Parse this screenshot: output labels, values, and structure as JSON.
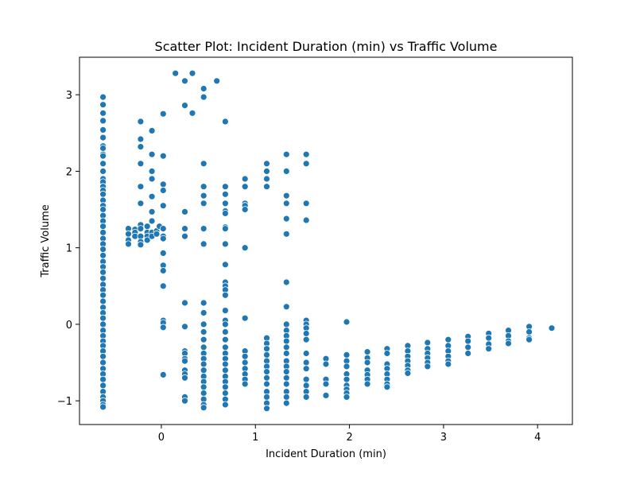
{
  "chart_data": {
    "type": "scatter",
    "title": "Scatter Plot: Incident Duration (min) vs Traffic Volume",
    "xlabel": "Incident Duration (min)",
    "ylabel": "Traffic Volume",
    "xlim": [
      -0.87,
      4.37
    ],
    "ylim": [
      -1.31,
      3.49
    ],
    "xticks": [
      0,
      1,
      2,
      3,
      4
    ],
    "yticks": [
      -1,
      0,
      1,
      2,
      3
    ],
    "grid": false,
    "legend": "none",
    "marker_color": "#1f77b4",
    "columns": [
      {
        "x": -0.62,
        "y": [
          2.97,
          2.87,
          2.76,
          2.66,
          2.54,
          2.44,
          2.33,
          2.3,
          2.22,
          2.2,
          2.1,
          2.0,
          1.9,
          1.86,
          1.8,
          1.75,
          1.7,
          1.62,
          1.55,
          1.5,
          1.42,
          1.35,
          1.28,
          1.2,
          1.12,
          1.05,
          0.98,
          0.9,
          0.82,
          0.75,
          0.68,
          0.6,
          0.52,
          0.45,
          0.38,
          0.3,
          0.22,
          0.15,
          0.08,
          0.0,
          -0.08,
          -0.15,
          -0.22,
          -0.28,
          -0.35,
          -0.42,
          -0.5,
          -0.58,
          -0.65,
          -0.72,
          -0.8,
          -0.88,
          -0.95,
          -1.0,
          -1.05,
          -1.08
        ]
      },
      {
        "x": -0.35,
        "y": [
          1.25,
          1.18,
          1.1,
          1.05
        ]
      },
      {
        "x": -0.28,
        "y": [
          1.24,
          1.2,
          1.15
        ]
      },
      {
        "x": -0.22,
        "y": [
          2.65,
          2.42,
          2.32,
          2.1,
          1.8,
          1.58,
          1.3,
          1.25,
          1.15,
          1.08,
          1.04
        ]
      },
      {
        "x": -0.15,
        "y": [
          1.28,
          1.2,
          1.15,
          1.1
        ]
      },
      {
        "x": -0.1,
        "y": [
          2.53,
          2.22,
          2.0,
          1.9,
          1.67,
          1.47,
          1.35,
          1.2,
          1.15
        ]
      },
      {
        "x": -0.05,
        "y": [
          1.22,
          1.18
        ]
      },
      {
        "x": -0.02,
        "y": [
          1.28
        ]
      },
      {
        "x": 0.02,
        "y": [
          2.75,
          2.2,
          1.83,
          1.75,
          1.55,
          1.25,
          1.15,
          1.12,
          0.93,
          0.77,
          0.7,
          0.5,
          0.05,
          0.02,
          -0.04,
          -0.66
        ]
      },
      {
        "x": 0.15,
        "y": [
          3.28
        ]
      },
      {
        "x": 0.25,
        "y": [
          3.18,
          2.86,
          1.47,
          1.25,
          1.15,
          0.28,
          -0.03,
          -0.35,
          -0.38,
          -0.45,
          -0.48,
          -0.6,
          -0.65,
          -0.7,
          -0.95,
          -1.0
        ]
      },
      {
        "x": 0.33,
        "y": [
          3.28,
          2.76
        ]
      },
      {
        "x": 0.45,
        "y": [
          3.08,
          2.97,
          2.1,
          1.8,
          1.68,
          1.58,
          1.25,
          1.05,
          0.28,
          0.15,
          0.0,
          -0.1,
          -0.2,
          -0.3,
          -0.38,
          -0.45,
          -0.52,
          -0.6,
          -0.68,
          -0.75,
          -0.82,
          -0.9,
          -0.98,
          -1.05,
          -1.09
        ]
      },
      {
        "x": 0.59,
        "y": [
          3.18
        ]
      },
      {
        "x": 0.68,
        "y": [
          2.65,
          1.8,
          1.7,
          1.58,
          1.48,
          1.45,
          1.27,
          1.25,
          1.05,
          0.78,
          0.55,
          0.5,
          0.45,
          0.38,
          0.18,
          0.05,
          0.0,
          -0.1,
          -0.2,
          -0.3,
          -0.38,
          -0.45,
          -0.52,
          -0.6,
          -0.68,
          -0.75,
          -0.82,
          -0.9,
          -0.98,
          -1.05
        ]
      },
      {
        "x": 0.89,
        "y": [
          1.9,
          1.8,
          1.58,
          1.55,
          1.5,
          1.0,
          0.08,
          -0.35,
          -0.42,
          -0.5,
          -0.58,
          -0.65,
          -0.72,
          -0.78
        ]
      },
      {
        "x": 1.12,
        "y": [
          2.1,
          2.0,
          1.9,
          1.8,
          -0.18,
          -0.25,
          -0.32,
          -0.4,
          -0.48,
          -0.55,
          -0.62,
          -0.7,
          -0.78,
          -0.88,
          -0.95,
          -1.03,
          -1.1
        ]
      },
      {
        "x": 1.33,
        "y": [
          2.22,
          2.0,
          1.68,
          1.58,
          1.38,
          1.18,
          0.55,
          0.23,
          0.0,
          -0.08,
          -0.15,
          -0.22,
          -0.3,
          -0.38,
          -0.48,
          -0.55,
          -0.62,
          -0.7,
          -0.78,
          -0.88,
          -0.95,
          -1.03
        ]
      },
      {
        "x": 1.54,
        "y": [
          2.22,
          2.1,
          1.58,
          1.36,
          0.05,
          0.0,
          -0.05,
          -0.12,
          -0.2,
          -0.38,
          -0.5,
          -0.58,
          -0.72,
          -0.8,
          -0.88,
          -0.95
        ]
      },
      {
        "x": 1.75,
        "y": [
          -0.45,
          -0.52,
          -0.72,
          -0.78,
          -0.93
        ]
      },
      {
        "x": 1.97,
        "y": [
          0.03,
          -0.4,
          -0.48,
          -0.55,
          -0.65,
          -0.72,
          -0.8,
          -0.85,
          -0.9,
          -0.95
        ]
      },
      {
        "x": 2.19,
        "y": [
          -0.36,
          -0.44,
          -0.5,
          -0.6,
          -0.66,
          -0.72,
          -0.78
        ]
      },
      {
        "x": 2.4,
        "y": [
          -0.32,
          -0.38,
          -0.52,
          -0.58,
          -0.65,
          -0.72,
          -0.78,
          -0.82
        ]
      },
      {
        "x": 2.62,
        "y": [
          -0.28,
          -0.35,
          -0.42,
          -0.48,
          -0.54,
          -0.6,
          -0.64
        ]
      },
      {
        "x": 2.83,
        "y": [
          -0.24,
          -0.32,
          -0.38,
          -0.44,
          -0.5,
          -0.55
        ]
      },
      {
        "x": 3.05,
        "y": [
          -0.2,
          -0.28,
          -0.35,
          -0.42,
          -0.48,
          -0.52
        ]
      },
      {
        "x": 3.26,
        "y": [
          -0.16,
          -0.22,
          -0.3,
          -0.38
        ]
      },
      {
        "x": 3.48,
        "y": [
          -0.12,
          -0.18,
          -0.26,
          -0.32
        ]
      },
      {
        "x": 3.69,
        "y": [
          -0.08,
          -0.15,
          -0.22,
          -0.25
        ]
      },
      {
        "x": 3.91,
        "y": [
          -0.03,
          -0.1,
          -0.18,
          -0.2
        ]
      },
      {
        "x": 4.15,
        "y": [
          -0.05
        ]
      }
    ]
  }
}
